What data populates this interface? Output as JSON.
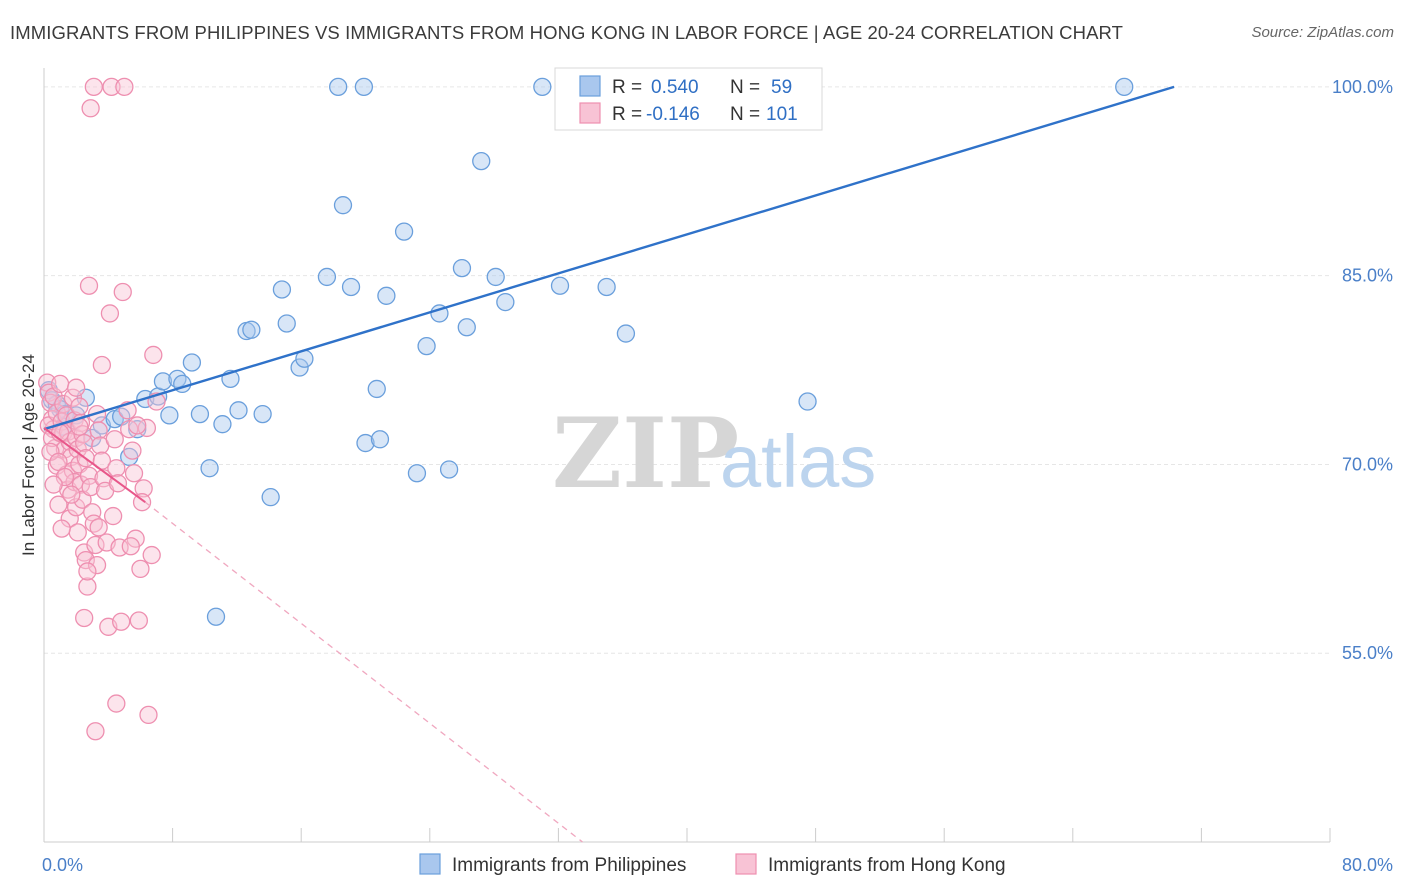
{
  "title": "IMMIGRANTS FROM PHILIPPINES VS IMMIGRANTS FROM HONG KONG IN LABOR FORCE | AGE 20-24 CORRELATION CHART",
  "source": "Source: ZipAtlas.com",
  "watermark": {
    "zip": "ZIP",
    "atlas": "atlas"
  },
  "chart_data": {
    "type": "scatter",
    "xlabel": "",
    "ylabel": "In Labor Force | Age 20-24",
    "xlim": [
      0,
      80
    ],
    "ylim": [
      40,
      101.5
    ],
    "x_tick_labels": [
      {
        "value": 0,
        "label": "0.0%"
      },
      {
        "value": 80,
        "label": "80.0%"
      }
    ],
    "y_tick_labels": [
      {
        "value": 100,
        "label": "100.0%"
      },
      {
        "value": 85,
        "label": "85.0%"
      },
      {
        "value": 70,
        "label": "70.0%"
      },
      {
        "value": 55,
        "label": "55.0%"
      }
    ],
    "grid": true,
    "legend_position": "bottom",
    "series": [
      {
        "name": "Immigrants from Philippines",
        "color": "#6a9fdc",
        "fill": "#a9c7ee",
        "trendline": {
          "x": [
            0.0,
            70.3
          ],
          "y": [
            72.8,
            100.0
          ],
          "style": "solid",
          "color": "#2f72c9"
        },
        "stats": {
          "r_label": "R =",
          "r_value": "0.540",
          "n_label": "N =",
          "n_value": "59"
        },
        "points": [
          [
            0.3,
            75.9
          ],
          [
            0.5,
            75.1
          ],
          [
            0.8,
            74.8
          ],
          [
            1.0,
            74.4
          ],
          [
            1.2,
            73.0
          ],
          [
            1.3,
            74.0
          ],
          [
            2.0,
            73.9
          ],
          [
            2.6,
            75.3
          ],
          [
            3.0,
            72.1
          ],
          [
            3.6,
            73.1
          ],
          [
            4.4,
            73.6
          ],
          [
            4.8,
            73.8
          ],
          [
            5.3,
            70.6
          ],
          [
            5.8,
            72.8
          ],
          [
            6.3,
            75.2
          ],
          [
            7.1,
            75.4
          ],
          [
            7.4,
            76.6
          ],
          [
            7.8,
            73.9
          ],
          [
            8.3,
            76.8
          ],
          [
            8.6,
            76.4
          ],
          [
            9.2,
            78.1
          ],
          [
            9.7,
            74.0
          ],
          [
            10.3,
            69.7
          ],
          [
            10.7,
            57.9
          ],
          [
            11.1,
            73.2
          ],
          [
            11.6,
            76.8
          ],
          [
            12.1,
            74.3
          ],
          [
            12.6,
            80.6
          ],
          [
            12.9,
            80.7
          ],
          [
            13.6,
            74.0
          ],
          [
            14.1,
            67.4
          ],
          [
            14.8,
            83.9
          ],
          [
            15.1,
            81.2
          ],
          [
            15.9,
            77.7
          ],
          [
            16.2,
            78.4
          ],
          [
            17.6,
            84.9
          ],
          [
            18.3,
            100.0
          ],
          [
            18.6,
            90.6
          ],
          [
            19.1,
            84.1
          ],
          [
            19.9,
            100.0
          ],
          [
            20.0,
            71.7
          ],
          [
            20.7,
            76.0
          ],
          [
            20.9,
            72.0
          ],
          [
            21.3,
            83.4
          ],
          [
            22.4,
            88.5
          ],
          [
            23.2,
            69.3
          ],
          [
            23.8,
            79.4
          ],
          [
            24.6,
            82.0
          ],
          [
            25.2,
            69.6
          ],
          [
            26.0,
            85.6
          ],
          [
            26.3,
            80.9
          ],
          [
            27.2,
            94.1
          ],
          [
            28.1,
            84.9
          ],
          [
            28.7,
            82.9
          ],
          [
            31.0,
            100.0
          ],
          [
            32.1,
            84.2
          ],
          [
            35.0,
            84.1
          ],
          [
            36.2,
            80.4
          ],
          [
            47.5,
            75.0
          ],
          [
            67.2,
            100.0
          ]
        ]
      },
      {
        "name": "Immigrants from Hong Kong",
        "color": "#ee8fb0",
        "fill": "#f8c3d5",
        "trendline": {
          "x": [
            0.0,
            6.3
          ],
          "y": [
            72.9,
            67.0
          ],
          "style": "solid",
          "color": "#e8578a"
        },
        "trendline_extension": {
          "x": [
            6.3,
            33.5
          ],
          "y": [
            67.0,
            40.0
          ],
          "style": "dashed",
          "color": "#f0a8c0"
        },
        "stats": {
          "r_label": "R =",
          "r_value": "-0.146",
          "n_label": "N =",
          "n_value": "101"
        },
        "points": [
          [
            0.2,
            76.5
          ],
          [
            0.3,
            75.7
          ],
          [
            0.4,
            74.9
          ],
          [
            0.5,
            73.6
          ],
          [
            0.6,
            72.8
          ],
          [
            0.7,
            71.3
          ],
          [
            0.8,
            69.9
          ],
          [
            0.9,
            66.8
          ],
          [
            0.3,
            73.1
          ],
          [
            0.5,
            72.1
          ],
          [
            0.6,
            75.4
          ],
          [
            0.8,
            74.1
          ],
          [
            1.0,
            76.4
          ],
          [
            1.1,
            73.4
          ],
          [
            1.2,
            72.5
          ],
          [
            1.3,
            71.2
          ],
          [
            1.4,
            69.2
          ],
          [
            1.5,
            68.0
          ],
          [
            1.6,
            65.7
          ],
          [
            1.2,
            74.8
          ],
          [
            1.4,
            73.9
          ],
          [
            1.5,
            72.6
          ],
          [
            1.6,
            71.8
          ],
          [
            1.7,
            70.6
          ],
          [
            1.8,
            69.5
          ],
          [
            1.9,
            68.6
          ],
          [
            2.0,
            66.6
          ],
          [
            2.1,
            64.6
          ],
          [
            1.8,
            75.3
          ],
          [
            1.9,
            73.5
          ],
          [
            2.0,
            72.1
          ],
          [
            2.1,
            71.2
          ],
          [
            2.2,
            70.0
          ],
          [
            2.3,
            68.4
          ],
          [
            2.4,
            67.2
          ],
          [
            2.5,
            63.0
          ],
          [
            2.6,
            62.4
          ],
          [
            2.7,
            60.3
          ],
          [
            2.0,
            76.1
          ],
          [
            2.2,
            74.6
          ],
          [
            2.3,
            73.3
          ],
          [
            2.4,
            72.4
          ],
          [
            2.5,
            71.7
          ],
          [
            2.6,
            70.5
          ],
          [
            2.8,
            69.1
          ],
          [
            2.9,
            68.2
          ],
          [
            3.0,
            66.2
          ],
          [
            3.1,
            65.3
          ],
          [
            3.2,
            63.6
          ],
          [
            3.3,
            62.0
          ],
          [
            2.8,
            84.2
          ],
          [
            2.9,
            98.3
          ],
          [
            3.1,
            100.0
          ],
          [
            3.3,
            74.0
          ],
          [
            3.4,
            72.7
          ],
          [
            3.5,
            71.5
          ],
          [
            3.6,
            70.3
          ],
          [
            3.7,
            68.9
          ],
          [
            3.8,
            67.9
          ],
          [
            3.9,
            63.8
          ],
          [
            4.0,
            57.1
          ],
          [
            4.1,
            82.0
          ],
          [
            4.2,
            100.0
          ],
          [
            4.4,
            72.0
          ],
          [
            4.5,
            69.7
          ],
          [
            4.6,
            68.5
          ],
          [
            4.7,
            63.4
          ],
          [
            4.9,
            83.7
          ],
          [
            5.0,
            100.0
          ],
          [
            5.2,
            74.3
          ],
          [
            5.3,
            72.8
          ],
          [
            5.5,
            71.1
          ],
          [
            5.6,
            69.3
          ],
          [
            5.7,
            64.1
          ],
          [
            5.9,
            57.6
          ],
          [
            6.0,
            61.7
          ],
          [
            6.2,
            68.1
          ],
          [
            6.4,
            72.9
          ],
          [
            6.5,
            50.1
          ],
          [
            6.7,
            62.8
          ],
          [
            6.8,
            78.7
          ],
          [
            7.0,
            75.0
          ],
          [
            4.5,
            51.0
          ],
          [
            3.2,
            48.8
          ],
          [
            2.5,
            57.8
          ],
          [
            4.8,
            57.5
          ],
          [
            3.6,
            77.9
          ],
          [
            2.2,
            73.0
          ],
          [
            1.0,
            72.5
          ],
          [
            1.7,
            67.6
          ],
          [
            0.4,
            71.0
          ],
          [
            0.9,
            70.2
          ],
          [
            1.3,
            69.0
          ],
          [
            5.4,
            63.5
          ],
          [
            4.3,
            65.9
          ],
          [
            3.4,
            65.0
          ],
          [
            2.7,
            61.5
          ],
          [
            6.1,
            67.0
          ],
          [
            5.8,
            73.1
          ],
          [
            0.6,
            68.4
          ],
          [
            1.1,
            64.9
          ]
        ]
      }
    ]
  }
}
